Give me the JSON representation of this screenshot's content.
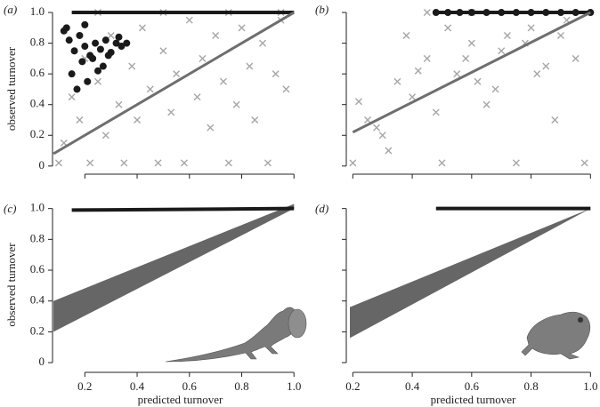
{
  "chart_data": [
    {
      "type": "scatter",
      "panel_label": "(a)",
      "y_label": "observed turnover",
      "xlim": [
        0.09,
        1.04
      ],
      "ylim": [
        -0.03,
        1.035
      ],
      "xticks": [
        0.2,
        0.4,
        0.6,
        0.8,
        {
          "value": 1,
          "label": "1.0"
        }
      ],
      "xtick_labels": false,
      "yticks": [
        0,
        0.2,
        0.4,
        0.6,
        0.8,
        {
          "value": 1,
          "label": "1.0"
        }
      ],
      "ytick_labels": true,
      "series": [
        {
          "kind": "points",
          "marker": "x",
          "color": "#a6a6a6",
          "x": [
            0.1,
            0.12,
            0.15,
            0.18,
            0.2,
            0.22,
            0.25,
            0.28,
            0.3,
            0.33,
            0.35,
            0.38,
            0.4,
            0.42,
            0.45,
            0.48,
            0.5,
            0.53,
            0.55,
            0.58,
            0.6,
            0.63,
            0.65,
            0.68,
            0.7,
            0.73,
            0.75,
            0.78,
            0.8,
            0.83,
            0.85,
            0.88,
            0.9,
            0.93,
            0.95,
            0.97,
            0.25,
            0.5,
            0.75,
            0.95
          ],
          "values": [
            0.02,
            0.15,
            0.45,
            0.3,
            0.7,
            0.02,
            0.55,
            0.2,
            0.85,
            0.4,
            0.02,
            0.65,
            0.3,
            0.9,
            0.5,
            0.02,
            0.75,
            0.35,
            0.6,
            0.02,
            0.95,
            0.45,
            0.7,
            0.25,
            0.85,
            0.55,
            0.02,
            0.4,
            0.9,
            0.65,
            0.3,
            0.8,
            0.02,
            0.6,
            0.95,
            0.5,
            1.0,
            1.0,
            1.0,
            1.0
          ]
        },
        {
          "kind": "line",
          "color": "#1a1a1a",
          "width": 4,
          "x": [
            0.15,
            1.0
          ],
          "values": [
            1.0,
            1.0
          ]
        },
        {
          "kind": "points",
          "marker": "o",
          "color": "#1a1a1a",
          "x": [
            0.12,
            0.14,
            0.16,
            0.18,
            0.2,
            0.22,
            0.24,
            0.26,
            0.28,
            0.3,
            0.32,
            0.34,
            0.15,
            0.19,
            0.23,
            0.27,
            0.17,
            0.21,
            0.25,
            0.13,
            0.29,
            0.33,
            0.36,
            0.2
          ],
          "values": [
            0.88,
            0.82,
            0.75,
            0.85,
            0.78,
            0.72,
            0.8,
            0.76,
            0.82,
            0.74,
            0.8,
            0.78,
            0.6,
            0.68,
            0.7,
            0.65,
            0.5,
            0.55,
            0.62,
            0.9,
            0.72,
            0.84,
            0.8,
            0.92
          ]
        },
        {
          "kind": "line",
          "color": "#6e6e6e",
          "width": 3,
          "x": [
            0.08,
            1.0
          ],
          "values": [
            0.08,
            1.0
          ]
        }
      ]
    },
    {
      "type": "scatter",
      "panel_label": "(b)",
      "xlim": [
        0.19,
        1.02
      ],
      "ylim": [
        -0.03,
        1.035
      ],
      "xticks": [
        0.2,
        0.4,
        0.6,
        0.8,
        {
          "value": 1,
          "label": "1.0"
        }
      ],
      "xtick_labels": false,
      "yticks": [
        0,
        0.2,
        0.4,
        0.6,
        0.8,
        {
          "value": 1,
          "label": "1.0"
        }
      ],
      "ytick_labels": false,
      "series": [
        {
          "kind": "points",
          "marker": "x",
          "color": "#a6a6a6",
          "x": [
            0.2,
            0.25,
            0.3,
            0.35,
            0.4,
            0.45,
            0.5,
            0.55,
            0.6,
            0.65,
            0.7,
            0.75,
            0.8,
            0.85,
            0.9,
            0.95,
            0.22,
            0.32,
            0.42,
            0.52,
            0.62,
            0.72,
            0.82,
            0.92,
            0.28,
            0.38,
            0.48,
            0.58,
            0.68,
            0.78,
            0.88,
            0.98,
            0.45,
            0.6
          ],
          "values": [
            0.02,
            0.3,
            0.2,
            0.55,
            0.45,
            0.7,
            0.02,
            0.6,
            0.8,
            0.4,
            0.75,
            0.02,
            0.9,
            0.65,
            0.85,
            0.7,
            0.42,
            0.1,
            0.62,
            0.9,
            0.55,
            0.85,
            0.6,
            0.95,
            0.25,
            0.85,
            0.35,
            0.7,
            0.5,
            0.8,
            0.3,
            0.02,
            1.0,
            1.0
          ]
        },
        {
          "kind": "line",
          "color": "#1a1a1a",
          "width": 4,
          "x": [
            0.48,
            1.0
          ],
          "values": [
            1.0,
            1.0
          ]
        },
        {
          "kind": "points",
          "marker": "o",
          "color": "#1a1a1a",
          "x": [
            0.48,
            0.52,
            0.56,
            0.6,
            0.65,
            0.7,
            0.75,
            0.8,
            0.85,
            0.9,
            0.95,
            1.0
          ],
          "values": [
            1.0,
            1.0,
            1.0,
            1.0,
            1.0,
            1.0,
            1.0,
            1.0,
            1.0,
            1.0,
            1.0,
            1.0
          ]
        },
        {
          "kind": "line",
          "color": "#6e6e6e",
          "width": 3,
          "x": [
            0.2,
            1.0
          ],
          "values": [
            0.22,
            1.0
          ]
        }
      ]
    },
    {
      "type": "band",
      "panel_label": "(c)",
      "y_label": "observed turnover",
      "x_label": "predicted turnover",
      "xlim": [
        0.09,
        1.04
      ],
      "ylim": [
        -0.04,
        1.05
      ],
      "xticks": [
        0.2,
        0.4,
        0.6,
        0.8,
        {
          "value": 1,
          "label": "1.0"
        }
      ],
      "xtick_labels": true,
      "yticks": [
        0,
        0.2,
        0.4,
        0.6,
        0.8,
        {
          "value": 1,
          "label": "1.0"
        }
      ],
      "ytick_labels": true,
      "series": [
        {
          "kind": "band",
          "color": "#666666",
          "x": [
            0.08,
            1.0
          ],
          "lower": [
            0.2,
            1.0
          ],
          "upper": [
            0.4,
            1.03
          ]
        },
        {
          "kind": "line",
          "color": "#1a1a1a",
          "width": 4,
          "x": [
            0.15,
            1.0
          ],
          "values": [
            0.99,
            1.0
          ]
        }
      ]
    },
    {
      "type": "band",
      "panel_label": "(d)",
      "x_label": "predicted turnover",
      "xlim": [
        0.19,
        1.02
      ],
      "ylim": [
        -0.04,
        1.05
      ],
      "xticks": [
        0.2,
        0.4,
        0.6,
        0.8,
        {
          "value": 1,
          "label": "1.0"
        }
      ],
      "xtick_labels": true,
      "yticks": [
        0,
        0.2,
        0.4,
        0.6,
        0.8,
        {
          "value": 1,
          "label": "1.0"
        }
      ],
      "ytick_labels": false,
      "series": [
        {
          "kind": "band",
          "color": "#666666",
          "x": [
            0.19,
            1.0
          ],
          "lower": [
            0.16,
            1.0
          ],
          "upper": [
            0.36,
            1.0
          ]
        },
        {
          "kind": "line",
          "color": "#1a1a1a",
          "width": 4,
          "x": [
            0.48,
            1.0
          ],
          "values": [
            1.0,
            1.0
          ]
        }
      ]
    }
  ]
}
